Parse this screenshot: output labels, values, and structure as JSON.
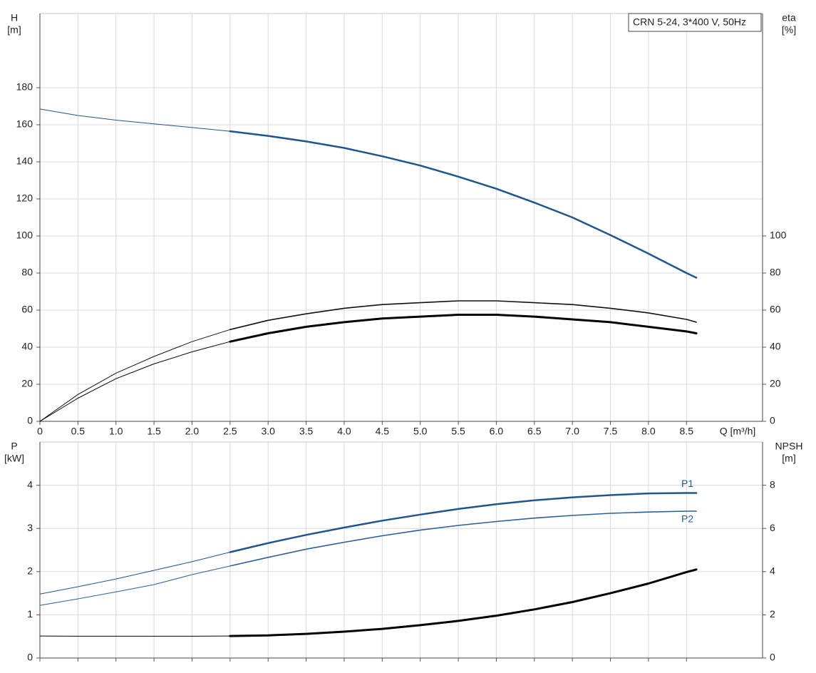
{
  "chart_data": [
    {
      "type": "line",
      "annotation": "CRN 5-24, 3*400 V, 50Hz",
      "ylabel": [
        "H",
        "[m]"
      ],
      "y2label": [
        "eta",
        "[%]"
      ],
      "xlabel": "Q [m³/h]",
      "x": [
        0,
        0.5,
        1.0,
        1.5,
        2.0,
        2.5,
        3.0,
        3.5,
        4.0,
        4.5,
        5.0,
        5.5,
        6.0,
        6.5,
        7.0,
        7.5,
        8.0,
        8.5,
        8.63
      ],
      "xlim": [
        0,
        9.5
      ],
      "xticks": [
        0,
        0.5,
        {
          "value": 1,
          "label": "1.0"
        },
        1.5,
        {
          "value": 2,
          "label": "2.0"
        },
        2.5,
        {
          "value": 3,
          "label": "3.0"
        },
        3.5,
        {
          "value": 4,
          "label": "4.0"
        },
        4.5,
        {
          "value": 5,
          "label": "5.0"
        },
        5.5,
        {
          "value": 6,
          "label": "6.0"
        },
        6.5,
        {
          "value": 7,
          "label": "7.0"
        },
        7.5,
        {
          "value": 8,
          "label": "8.0"
        },
        8.5
      ],
      "ylim": [
        0,
        220
      ],
      "yticks": [
        0,
        20,
        40,
        60,
        80,
        100,
        120,
        140,
        160,
        180
      ],
      "y2lim": [
        0,
        220
      ],
      "y2ticks": [
        0,
        20,
        40,
        60,
        80,
        100
      ],
      "grid": true,
      "bold_from_x": 2.5,
      "show_xtick_labels": true,
      "series": [
        {
          "color": "#1f5591",
          "linewidth": 2.5,
          "values": [
            168.5,
            165,
            162.5,
            160.5,
            158.5,
            156.5,
            154,
            151,
            147.5,
            143,
            138,
            132,
            125.5,
            118,
            110,
            100.5,
            90.5,
            80,
            77.5
          ]
        },
        {
          "color": "#111111",
          "linewidth": 1.6,
          "axis": "y2",
          "values": [
            0,
            14.5,
            26,
            35,
            43,
            49.5,
            54.5,
            58,
            61,
            63,
            64,
            65,
            65,
            64,
            63,
            61,
            58.5,
            55,
            53.5
          ]
        },
        {
          "color": "#000000",
          "linewidth": 3,
          "axis": "y2",
          "values": [
            0,
            12.5,
            23,
            31,
            37.5,
            43,
            47.5,
            51,
            53.5,
            55.5,
            56.5,
            57.5,
            57.5,
            56.5,
            55,
            53.5,
            51,
            48.5,
            47.5
          ]
        }
      ]
    },
    {
      "type": "line",
      "ylabel": [
        "P",
        "[kW]"
      ],
      "y2label": [
        "NPSH",
        "[m]"
      ],
      "x": [
        0,
        0.5,
        1.0,
        1.5,
        2.0,
        2.5,
        3.0,
        3.5,
        4.0,
        4.5,
        5.0,
        5.5,
        6.0,
        6.5,
        7.0,
        7.5,
        8.0,
        8.5,
        8.63
      ],
      "xlim": [
        0,
        9.5
      ],
      "xticks": [
        0,
        0.5,
        1,
        1.5,
        2,
        2.5,
        3,
        3.5,
        4,
        4.5,
        5,
        5.5,
        6,
        6.5,
        7,
        7.5,
        8,
        8.5
      ],
      "ylim": [
        0,
        5
      ],
      "yticks": [
        0,
        1,
        2,
        3,
        4
      ],
      "y2lim": [
        0,
        10
      ],
      "y2ticks": [
        0,
        2,
        4,
        6,
        8
      ],
      "grid": true,
      "bold_from_x": 2.5,
      "show_xtick_labels": false,
      "series": [
        {
          "name": "P1",
          "color": "#1f5591",
          "linewidth": 2.5,
          "values": [
            1.48,
            1.65,
            1.83,
            2.03,
            2.23,
            2.45,
            2.66,
            2.85,
            3.02,
            3.18,
            3.32,
            3.45,
            3.56,
            3.65,
            3.72,
            3.77,
            3.81,
            3.82,
            3.82
          ]
        },
        {
          "name": "P2",
          "color": "#2a5fa0",
          "linewidth": 1.6,
          "values": [
            1.22,
            1.37,
            1.53,
            1.7,
            1.93,
            2.13,
            2.33,
            2.52,
            2.68,
            2.83,
            2.96,
            3.07,
            3.16,
            3.24,
            3.3,
            3.35,
            3.38,
            3.4,
            3.4
          ]
        },
        {
          "color": "#000000",
          "linewidth": 3,
          "axis": "y2",
          "values": [
            1.02,
            1.01,
            1.01,
            1.01,
            1.01,
            1.02,
            1.05,
            1.12,
            1.22,
            1.35,
            1.52,
            1.72,
            1.96,
            2.25,
            2.59,
            3.0,
            3.45,
            3.98,
            4.1
          ]
        }
      ]
    }
  ]
}
